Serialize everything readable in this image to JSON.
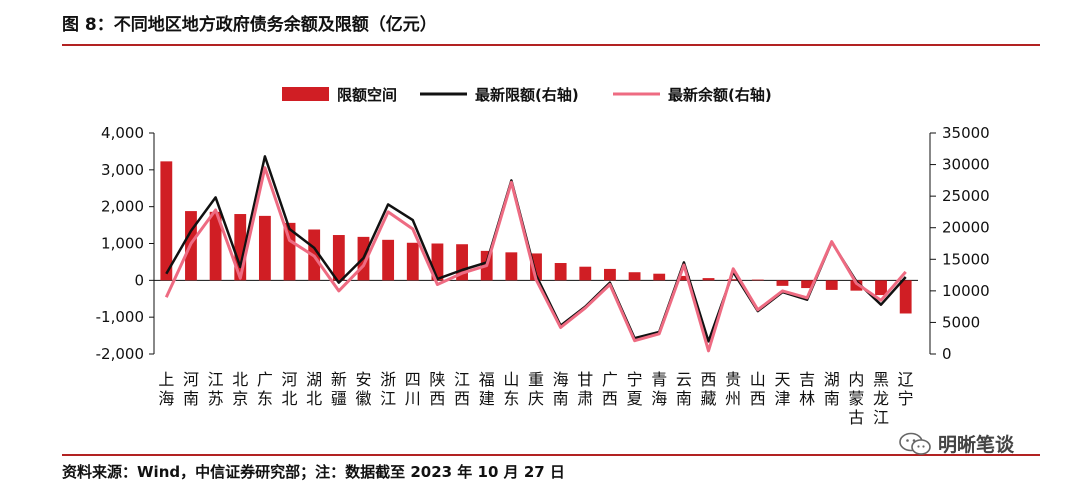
{
  "header": {
    "title": "图 8：不同地区地方政府债务余额及限额（亿元）"
  },
  "footer": {
    "source": "资料来源：Wind，中信证券研究部；注：数据截至 2023 年 10 月 27 日"
  },
  "watermark": {
    "text": "明晰笔谈",
    "icon": "wechat-icon"
  },
  "colors": {
    "bar": "#d01e24",
    "limit_line": "#111111",
    "balance_line": "#ee6b82",
    "rule": "#b22222"
  },
  "chart_data": {
    "type": "bar",
    "title": "",
    "legend_position": "top",
    "categories": [
      "上海",
      "河南",
      "江苏",
      "北京",
      "广东",
      "河北",
      "湖北",
      "新疆",
      "安徽",
      "浙江",
      "四川",
      "陕西",
      "江西",
      "福建",
      "山东",
      "重庆",
      "海南",
      "甘肃",
      "广西",
      "宁夏",
      "青海",
      "云南",
      "西藏",
      "贵州",
      "山西",
      "天津",
      "吉林",
      "湖南",
      "内蒙古",
      "黑龙江",
      "辽宁"
    ],
    "y_left": {
      "ylim": [
        -2000,
        4000
      ],
      "ticks": [
        "-2,000",
        "-1,000",
        "0",
        "1,000",
        "2,000",
        "3,000",
        "4,000"
      ],
      "tick_values": [
        -2000,
        -1000,
        0,
        1000,
        2000,
        3000,
        4000
      ]
    },
    "y_right": {
      "ylim": [
        0,
        35000
      ],
      "ticks": [
        "0",
        "5000",
        "10000",
        "15000",
        "20000",
        "25000",
        "30000",
        "35000"
      ],
      "tick_values": [
        0,
        5000,
        10000,
        15000,
        20000,
        25000,
        30000,
        35000
      ]
    },
    "series": [
      {
        "name": "限额空间",
        "type": "bar",
        "axis": "left",
        "values": [
          3230,
          1880,
          1860,
          1800,
          1750,
          1560,
          1380,
          1230,
          1180,
          1100,
          1020,
          1000,
          980,
          800,
          760,
          730,
          470,
          370,
          310,
          220,
          180,
          120,
          60,
          30,
          20,
          -150,
          -210,
          -260,
          -280,
          -400,
          -900
        ]
      },
      {
        "name": "最新限额(右轴)",
        "type": "line",
        "axis": "right",
        "values": [
          12700,
          19500,
          24800,
          13800,
          31300,
          19800,
          16800,
          11300,
          15200,
          23700,
          21200,
          11900,
          13300,
          14500,
          27500,
          12500,
          4500,
          7500,
          11300,
          2500,
          3500,
          14500,
          2000,
          13000,
          6800,
          9800,
          8600,
          17700,
          11500,
          7800,
          12200
        ]
      },
      {
        "name": "最新余额(右轴)",
        "type": "line",
        "axis": "right",
        "values": [
          9000,
          17500,
          22800,
          12000,
          29500,
          18000,
          15500,
          10000,
          14000,
          22500,
          19800,
          11000,
          12800,
          14000,
          27200,
          11800,
          4200,
          7300,
          11000,
          2100,
          3200,
          14100,
          500,
          13500,
          7000,
          10000,
          8900,
          17800,
          11200,
          8500,
          13000
        ]
      }
    ]
  }
}
